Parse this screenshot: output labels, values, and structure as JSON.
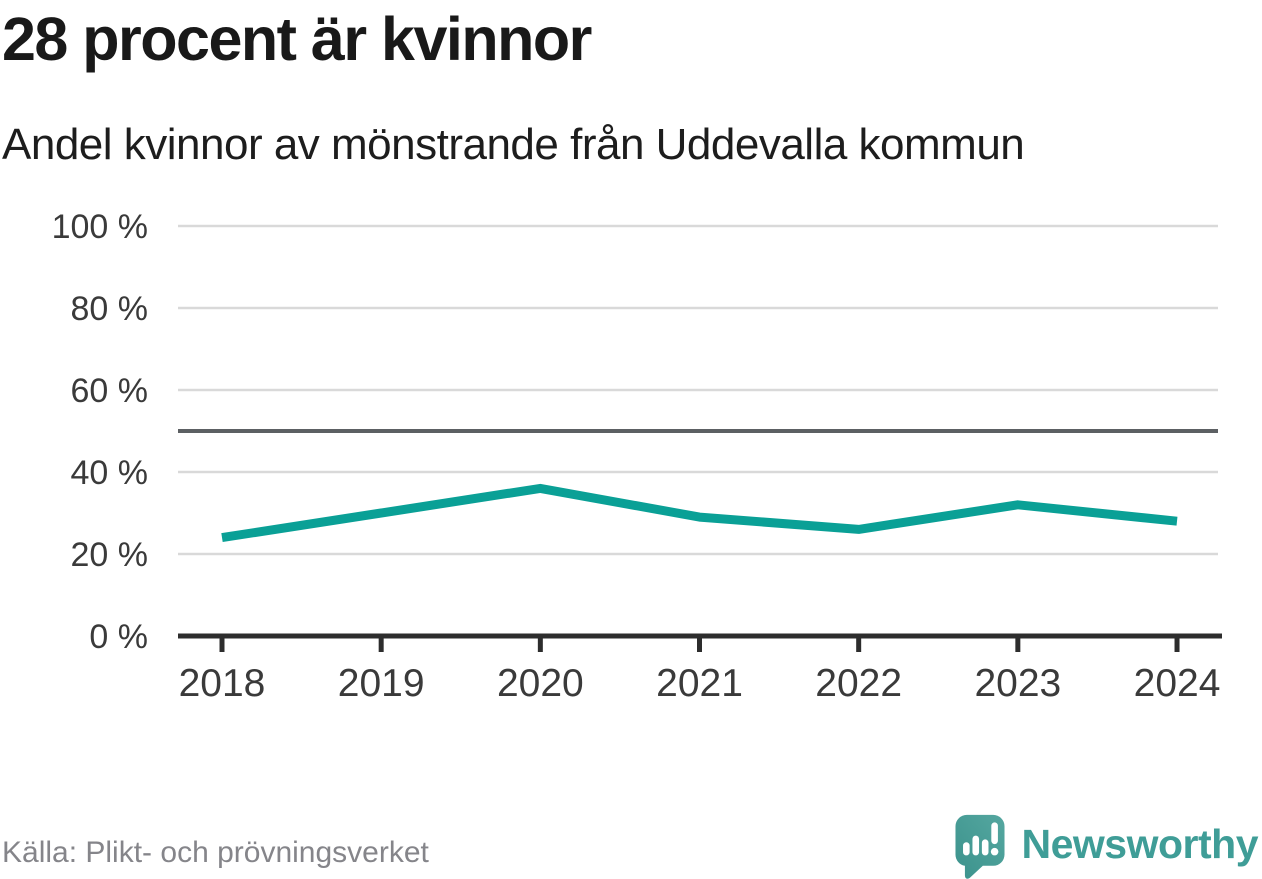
{
  "header": {
    "title": "28 procent är kvinnor",
    "subtitle": "Andel kvinnor av mönstrande från Uddevalla kommun"
  },
  "footer": {
    "source": "Källa: Plikt- och prövningsverket",
    "brand": "Newsworthy"
  },
  "colors": {
    "line": "#0aa096",
    "grid": "#d9d9d9",
    "reference_line": "#5c6063",
    "axis": "#2d2d2d",
    "axis_label": "#3a3a3a",
    "title_text": "#191919",
    "source_text": "#85858a",
    "brand_teal": "#3f9d97"
  },
  "chart_data": {
    "type": "line",
    "title": "28 procent är kvinnor",
    "subtitle": "Andel kvinnor av mönstrande från Uddevalla kommun",
    "x": [
      2018,
      2019,
      2020,
      2021,
      2022,
      2023,
      2024
    ],
    "values": [
      24,
      30,
      36,
      29,
      26,
      32,
      28
    ],
    "unit": "%",
    "xlabel": "",
    "ylabel": "",
    "ylim": [
      0,
      100
    ],
    "yticks": [
      0,
      20,
      40,
      60,
      80,
      100
    ],
    "ytick_suffix": " %",
    "reference_line": 50,
    "grid": true,
    "legend": false
  }
}
